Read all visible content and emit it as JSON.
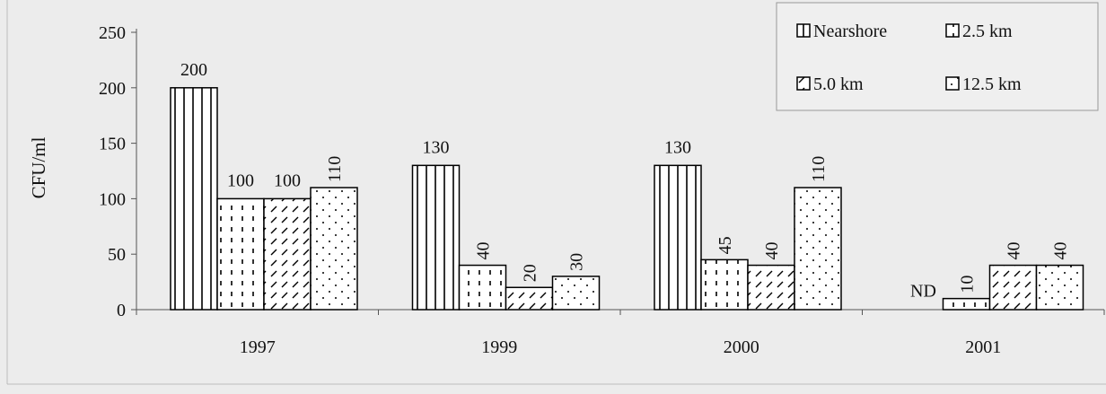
{
  "chart_data": {
    "type": "bar",
    "title": "",
    "xlabel": "",
    "ylabel": "CFU/ml",
    "ylim": [
      0,
      250
    ],
    "yticks": [
      0,
      50,
      100,
      150,
      200,
      250
    ],
    "categories": [
      "1997",
      "1999",
      "2000",
      "2001"
    ],
    "legend_position": "top-right",
    "series": [
      {
        "name": "Nearshore",
        "values": [
          200,
          130,
          130,
          null
        ],
        "labels": [
          "200",
          "130",
          "130",
          "ND"
        ],
        "pattern": "vertical-lines"
      },
      {
        "name": "2.5 km",
        "values": [
          100,
          40,
          45,
          10
        ],
        "labels": [
          "100",
          "40",
          "45",
          "10"
        ],
        "pattern": "dashes"
      },
      {
        "name": "5.0 km",
        "values": [
          100,
          20,
          40,
          40
        ],
        "labels": [
          "100",
          "20",
          "40",
          "40"
        ],
        "pattern": "diagonal-lines"
      },
      {
        "name": "12.5 km",
        "values": [
          110,
          30,
          110,
          40
        ],
        "labels": [
          "110",
          "30",
          "110",
          "40"
        ],
        "pattern": "dots"
      }
    ]
  }
}
